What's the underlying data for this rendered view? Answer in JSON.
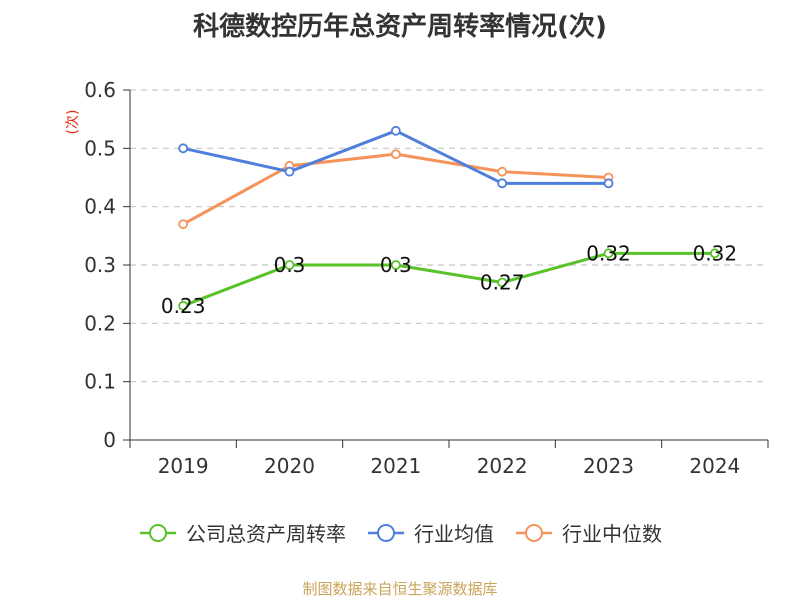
{
  "title": "科德数控历年总资产周转率情况(次)",
  "source_text": "制图数据来自恒生聚源数据库",
  "chart_data": {
    "type": "line",
    "title": "科德数控历年总资产周转率情况(次)",
    "xlabel": "",
    "ylabel": "(次)",
    "categories": [
      "2019",
      "2020",
      "2021",
      "2022",
      "2023",
      "2024"
    ],
    "ylim": [
      0,
      0.6
    ],
    "yticks": [
      0,
      0.1,
      0.2,
      0.3,
      0.4,
      0.5,
      0.6
    ],
    "ytick_labels": [
      "0",
      "0.1",
      "0.2",
      "0.3",
      "0.4",
      "0.5",
      "0.6"
    ],
    "grid": true,
    "legend_position": "bottom",
    "series": [
      {
        "name": "公司总资产周转率",
        "color": "#5ac229",
        "values": [
          0.23,
          0.3,
          0.3,
          0.27,
          0.32,
          0.32
        ],
        "labels": [
          "0.23",
          "0.3",
          "0.3",
          "0.27",
          "0.32",
          "0.32"
        ]
      },
      {
        "name": "行业均值",
        "color": "#4f7fdc",
        "values": [
          0.5,
          0.46,
          0.53,
          0.44,
          0.44,
          null
        ]
      },
      {
        "name": "行业中位数",
        "color": "#f5935a",
        "values": [
          0.37,
          0.47,
          0.49,
          0.46,
          0.45,
          null
        ]
      }
    ]
  }
}
